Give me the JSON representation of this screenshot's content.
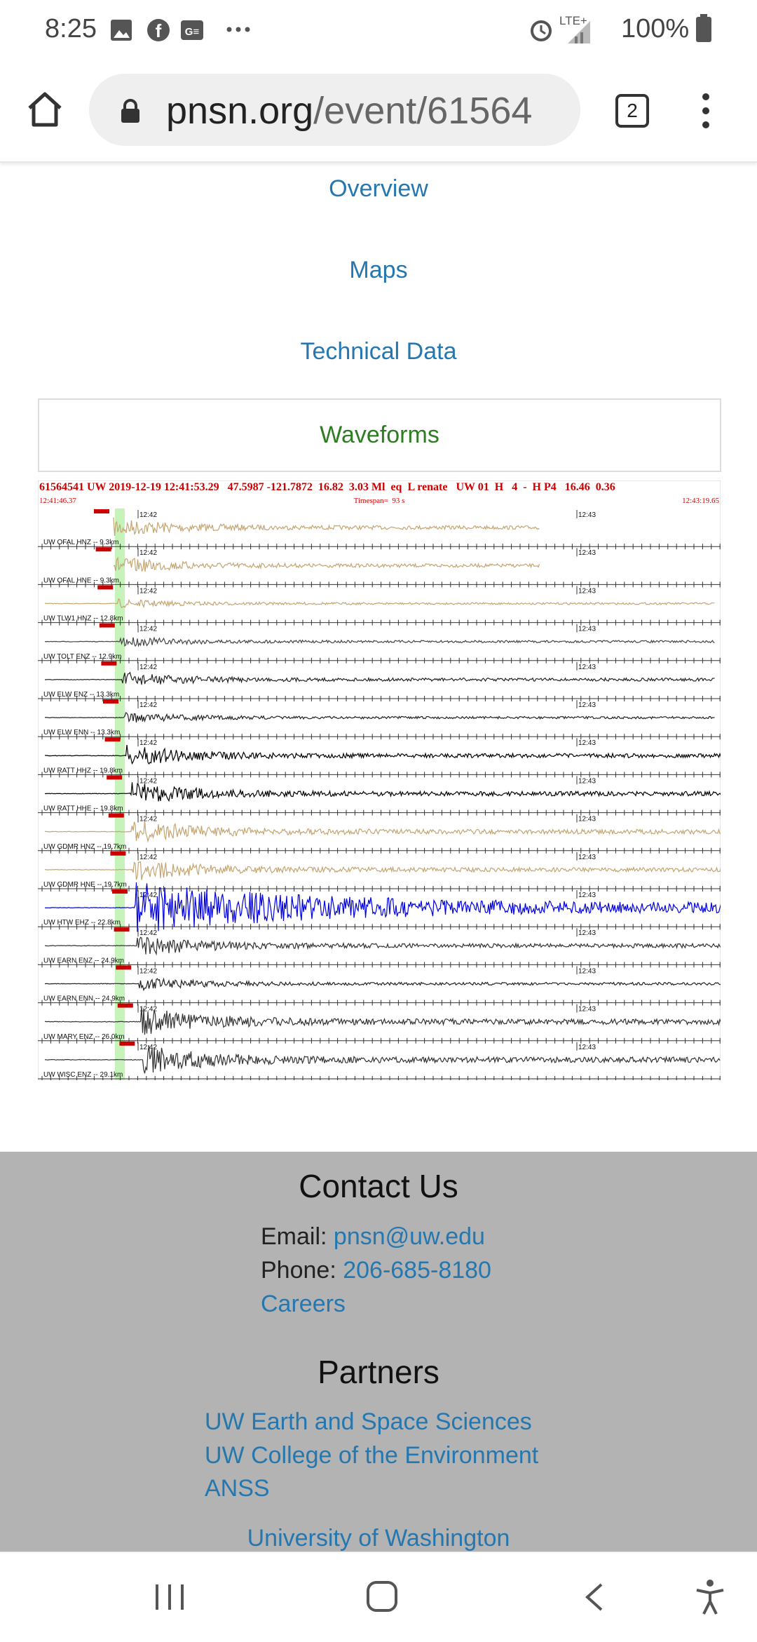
{
  "status_bar": {
    "time": "8:25",
    "network": "LTE+",
    "battery": "100%"
  },
  "browser": {
    "url_domain": "pnsn.org",
    "url_path": "/event/61564",
    "tab_count": 2
  },
  "nav": [
    "Overview",
    "Maps",
    "Technical Data",
    "Waveforms"
  ],
  "waveform": {
    "header": "61564541 UW 2019-12-19 12:41:53.29   47.5987 -121.7872  16.82  3.03 Ml  eq  L renate   UW 01  H   4  -  H P4   16.46  0.36",
    "start_time": "12:41:46.37",
    "timespan": "Timespan=  93 s",
    "end_time": "12:43:19.65",
    "time_marks": [
      "12:42",
      "12:43"
    ],
    "traces": [
      "UW OFAL HNZ -- 9.3km",
      "UW OFAL HNE -- 9.3km",
      "UW TLW1 HNZ -- 12.8km",
      "UW TOLT ENZ -- 12.9km",
      "UW ELW ENZ -- 13.3km",
      "UW ELW ENN -- 13.3km",
      "UW RATT HHZ -- 19.8km",
      "UW RATT HHE -- 19.8km",
      "UW GDMR HNZ -- 19.7km",
      "UW GDMR HNE -- 19.7km",
      "UW HTW EHZ -- 22.8km",
      "UW EARN ENZ -- 24.9km",
      "UW EARN ENN -- 24.9km",
      "UW MARY ENZ -- 26.0km",
      "UW WISC ENZ -- 29.1km"
    ]
  },
  "footer": {
    "contact_title": "Contact Us",
    "email_label": "Email:",
    "email": "pnsn@uw.edu",
    "phone_label": "Phone:",
    "phone": "206-685-8180",
    "careers": "Careers",
    "partners_title": "Partners",
    "partners": [
      "UW Earth and Space Sciences",
      "UW College of the Environment",
      "ANSS"
    ],
    "university": "University of Washington"
  }
}
